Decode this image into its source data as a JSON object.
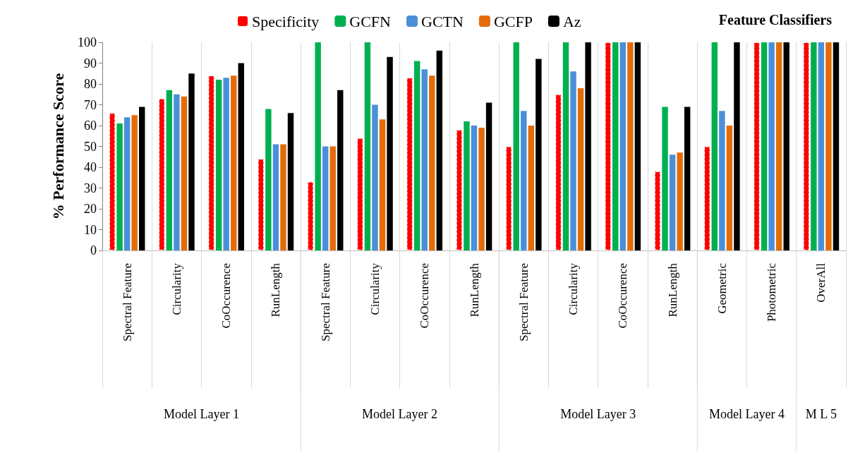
{
  "chart_data": {
    "type": "bar",
    "ylabel": "% Performance Score",
    "legend_title": "Feature Classifiers",
    "categories": [
      "Spectral Feature",
      "Circularity",
      "CoOccurence",
      "RunLength",
      "Spectral Feature",
      "Circularity",
      "CoOccurence",
      "RunLength",
      "Spectral Feature",
      "Circularity",
      "CoOccurence",
      "RunLength",
      "Geometric",
      "Photometric",
      "OverAll"
    ],
    "series": [
      {
        "name": "Specificity",
        "color": "#ff0000",
        "line_style": "dashed",
        "values": [
          66,
          73,
          84,
          44,
          33,
          54,
          83,
          58,
          50,
          75,
          100,
          38,
          50,
          100,
          100
        ]
      },
      {
        "name": "GCFN",
        "color": "#00b050",
        "values": [
          61,
          77,
          82,
          68,
          100,
          100,
          91,
          62,
          100,
          100,
          100,
          69,
          100,
          100,
          100
        ]
      },
      {
        "name": "GCTN",
        "color": "#4a90d9",
        "values": [
          64,
          75,
          83,
          51,
          50,
          70,
          87,
          60,
          67,
          86,
          100,
          46,
          67,
          100,
          100
        ]
      },
      {
        "name": "GCFP",
        "color": "#e36c09",
        "values": [
          65,
          74,
          84,
          51,
          50,
          63,
          84,
          59,
          60,
          78,
          100,
          47,
          60,
          100,
          100
        ]
      },
      {
        "name": "Az",
        "color": "#000000",
        "values": [
          69,
          85,
          90,
          66,
          77,
          93,
          96,
          71,
          92,
          100,
          100,
          69,
          100,
          100,
          100
        ]
      }
    ],
    "annotations": [
      "Model Layer 1",
      "Model Layer 2",
      "Model Layer 3",
      "Model Layer 4",
      "M L 5"
    ],
    "ylim": [
      0,
      100
    ],
    "yticks": [
      0,
      10,
      20,
      30,
      40,
      50,
      60,
      70,
      80,
      90,
      100
    ],
    "grid": "x",
    "legend": "top"
  }
}
